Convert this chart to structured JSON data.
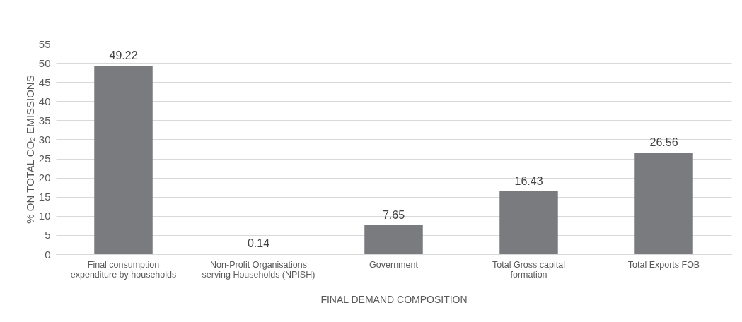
{
  "chart_data": {
    "type": "bar",
    "xlabel": "FINAL DEMAND COMPOSITION",
    "ylabel": "% ON TOTAL CO₂ EMISSIONS",
    "categories": [
      "Final consumption expenditure by households",
      "Non-Profit Organisations serving Households (NPISH)",
      "Government",
      "Total Gross capital formation",
      "Total Exports FOB"
    ],
    "values": [
      49.22,
      0.14,
      7.65,
      16.43,
      26.56
    ],
    "color": "#7a7b7e",
    "ylim": [
      0,
      55
    ],
    "yticks": [
      0,
      5,
      10,
      15,
      20,
      25,
      30,
      35,
      40,
      45,
      50,
      55
    ],
    "grid": "y",
    "data_labels": true
  }
}
